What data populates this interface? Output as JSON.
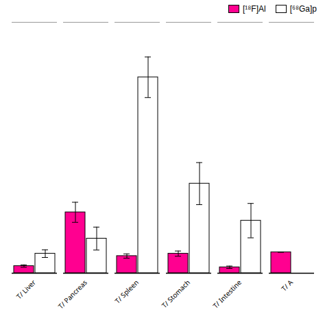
{
  "chart_data": {
    "type": "bar",
    "categories": [
      "T/ Liver",
      "T/ Pancreas",
      "T/ Spleen",
      "T/ Stomach",
      "T/ Intestine",
      "T/ A"
    ],
    "series": [
      {
        "name": "[¹⁸F]Al",
        "color": "#FF0090",
        "values": [
          0.3,
          2.55,
          0.72,
          0.82,
          0.25,
          0.88
        ],
        "errors": [
          0.05,
          0.42,
          0.09,
          0.11,
          0.05,
          0.0
        ]
      },
      {
        "name": "[⁶⁸Ga]p",
        "color": "#FFFFFF",
        "values": [
          0.82,
          1.45,
          8.2,
          3.75,
          2.2,
          null
        ],
        "errors": [
          0.16,
          0.48,
          0.85,
          0.88,
          0.72,
          null
        ]
      }
    ],
    "ylim": [
      0,
      10.5
    ],
    "legend": "upper right",
    "tick_labels": "x"
  }
}
